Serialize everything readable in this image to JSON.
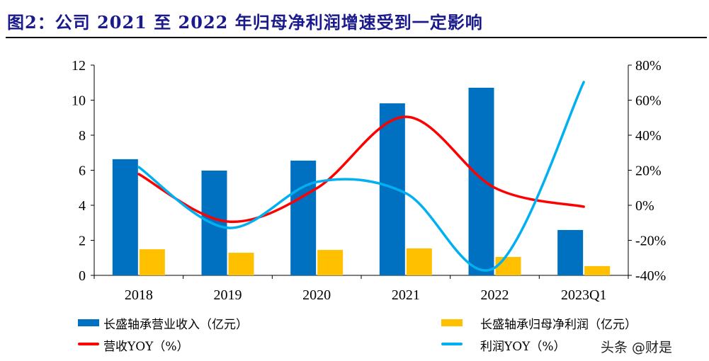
{
  "title": "图2：公司 2021 至 2022 年归母净利润增速受到一定影响",
  "watermark": "头条 @财是",
  "chart_data": {
    "type": "bar+line",
    "categories": [
      "2018",
      "2019",
      "2020",
      "2021",
      "2022",
      "2023Q1"
    ],
    "left_axis": {
      "ylim": [
        0,
        12
      ],
      "ticks": [
        "0",
        "2",
        "4",
        "6",
        "8",
        "10",
        "12"
      ]
    },
    "right_axis": {
      "ylim": [
        -40,
        80
      ],
      "ticks": [
        "-40%",
        "-20%",
        "0%",
        "20%",
        "40%",
        "60%",
        "80%"
      ]
    },
    "grid": false,
    "legend_placement": "bottom",
    "series": [
      {
        "name": "长盛轴承营业收入（亿元）",
        "type": "bar",
        "axis": "left",
        "color": "#0070c0",
        "values": [
          6.63,
          5.98,
          6.55,
          9.82,
          10.71,
          2.59
        ]
      },
      {
        "name": "长盛轴承归母净利润（亿元）",
        "type": "bar",
        "axis": "left",
        "color": "#ffc000",
        "values": [
          1.49,
          1.29,
          1.45,
          1.54,
          1.05,
          0.53
        ]
      },
      {
        "name": "营收YOY（%）",
        "type": "line",
        "axis": "right",
        "smooth": true,
        "color": "#ff0000",
        "values": [
          17.8,
          -9.3,
          9.7,
          50.5,
          10.0,
          -0.8
        ]
      },
      {
        "name": "利润YOY（%）",
        "type": "line",
        "axis": "right",
        "smooth": true,
        "color": "#00b0f0",
        "values": [
          21.8,
          -12.9,
          13.3,
          6.9,
          -35.6,
          70.3
        ]
      }
    ]
  }
}
